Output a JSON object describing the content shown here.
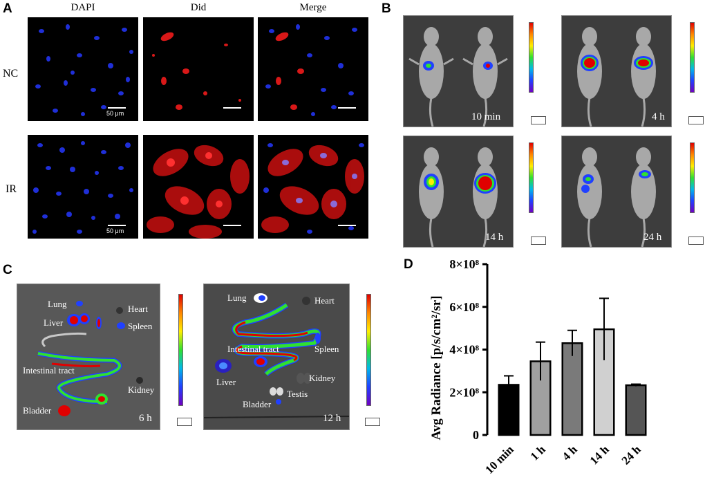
{
  "panels": {
    "a": "A",
    "b": "B",
    "c": "C",
    "d": "D"
  },
  "panel_a": {
    "columns": [
      "DAPI",
      "Did",
      "Merge"
    ],
    "rows": [
      "NC",
      "IR"
    ],
    "scale_label": "50 μm"
  },
  "panel_b": {
    "times": [
      "10 min",
      "4 h",
      "14 h",
      "24 h"
    ]
  },
  "panel_c": {
    "left": {
      "time": "6 h",
      "organs": {
        "lung": "Lung",
        "heart": "Heart",
        "liver": "Liver",
        "spleen": "Spleen",
        "intestinal": "Intestinal tract",
        "kidney": "Kidney",
        "bladder": "Bladder"
      }
    },
    "right": {
      "time": "12 h",
      "organs": {
        "lung": "Lung",
        "heart": "Heart",
        "intestinal": "Intestinal tract",
        "spleen": "Spleen",
        "liver": "Liver",
        "kidney": "Kidney",
        "testis": "Testis",
        "bladder": "Bladder"
      }
    }
  },
  "colors": {
    "bar_fills": [
      "#000000",
      "#a0a0a0",
      "#7a7a7a",
      "#d0d0d0",
      "#555555"
    ]
  },
  "chart_data": {
    "type": "bar",
    "categories": [
      "10 min",
      "1 h",
      "4 h",
      "14 h",
      "24 h"
    ],
    "values": [
      235000000.0,
      345000000.0,
      430000000.0,
      495000000.0,
      233000000.0
    ],
    "errors": [
      42000000.0,
      90000000.0,
      60000000.0,
      145000000.0,
      5000000.0
    ],
    "ylabel": "Avg Radiance [p/s/cm²/sr]",
    "ylim": [
      0,
      800000000.0
    ],
    "yticks": [
      {
        "value": 0,
        "label": "0"
      },
      {
        "value": 200000000.0,
        "label": "2×10⁸"
      },
      {
        "value": 400000000.0,
        "label": "4×10⁸"
      },
      {
        "value": 600000000.0,
        "label": "6×10⁸"
      },
      {
        "value": 800000000.0,
        "label": "8×10⁸"
      }
    ]
  }
}
